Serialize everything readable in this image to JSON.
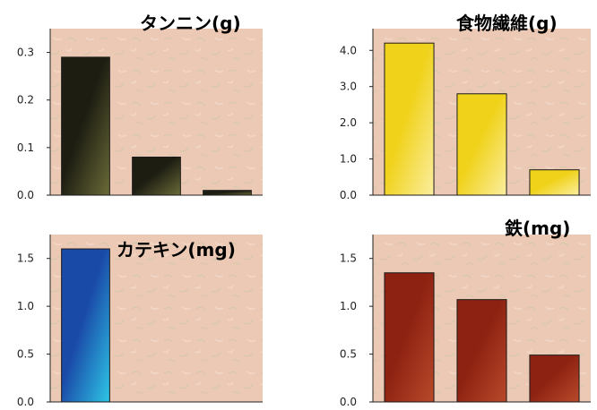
{
  "chart_data": [
    {
      "type": "bar",
      "title": "タンニン(g)",
      "values": [
        0.29,
        0.08,
        0.01
      ],
      "ylim": [
        0,
        0.35
      ],
      "yticks": [
        "0.0",
        "0.1",
        "0.2",
        "0.3"
      ],
      "ytick_values": [
        0,
        0.1,
        0.2,
        0.3
      ],
      "colors": {
        "bar_dark": "#1d1d12",
        "bar_light": "#6b6b38",
        "title_text": "#2e7d2b",
        "title_bg": "#fbf7b8"
      }
    },
    {
      "type": "bar",
      "title": "食物繊維(g)",
      "values": [
        4.2,
        2.8,
        0.7
      ],
      "ylim": [
        0,
        4.6
      ],
      "yticks": [
        "0.0",
        "1.0",
        "2.0",
        "3.0",
        "4.0"
      ],
      "ytick_values": [
        0,
        1,
        2,
        3,
        4
      ],
      "colors": {
        "bar_dark": "#f0d21a",
        "bar_light": "#fbeea0",
        "title_text": "#4a3f12",
        "title_bg": "#fbf7b8"
      }
    },
    {
      "type": "bar",
      "title": "カテキン(mg)",
      "values": [
        1.6,
        0,
        0
      ],
      "ylim": [
        0,
        1.75
      ],
      "yticks": [
        "0.0",
        "0.5",
        "1.0",
        "1.5"
      ],
      "ytick_values": [
        0,
        0.5,
        1.0,
        1.5
      ],
      "colors": {
        "bar_dark": "#1a4aa8",
        "bar_light": "#2ec6e6",
        "title_text": "#1d55b0",
        "title_bg": "#fbf7b8"
      }
    },
    {
      "type": "bar",
      "title": "鉄(mg)",
      "values": [
        1.35,
        1.07,
        0.49
      ],
      "ylim": [
        0,
        1.75
      ],
      "yticks": [
        "0.0",
        "0.5",
        "1.0",
        "1.5"
      ],
      "ytick_values": [
        0,
        0.5,
        1.0,
        1.5
      ],
      "colors": {
        "bar_dark": "#8e2212",
        "bar_light": "#b84a2a",
        "title_text": "#8e1f12",
        "title_bg": "#fbf7b8"
      }
    }
  ],
  "style": {
    "plot_bg": "#ecc9b4",
    "axis_color": "#222222"
  }
}
